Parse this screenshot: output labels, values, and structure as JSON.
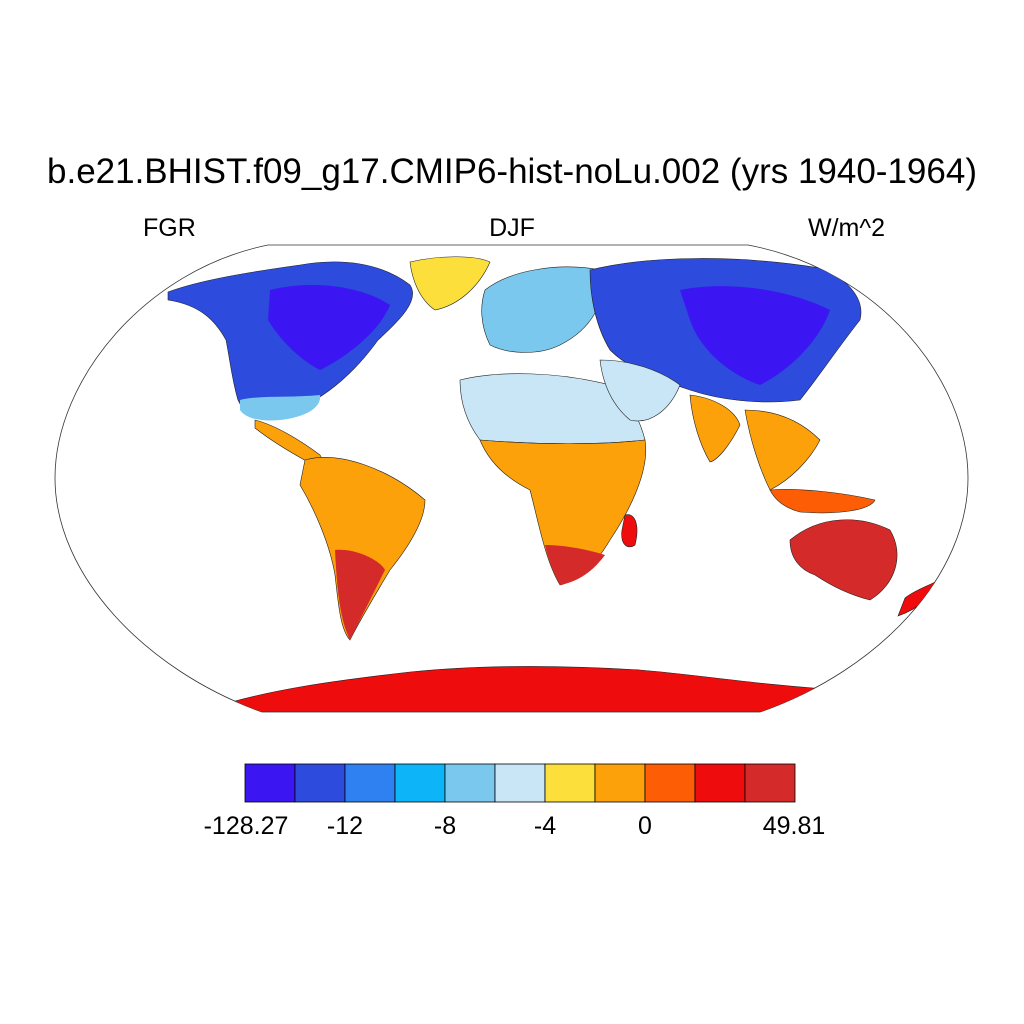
{
  "title": "b.e21.BHIST.f09_g17.CMIP6-hist-noLu.002 (yrs 1940-1964)",
  "left_label": "FGR",
  "center_label": "DJF",
  "right_label": "W/m^2",
  "colorbar": {
    "colors": [
      "#3b16f2",
      "#2d4bdc",
      "#2f80f0",
      "#0db4f8",
      "#7ac8ee",
      "#c9e6f7",
      "#fcdf3a",
      "#fda10a",
      "#fd5e05",
      "#ef0c0c",
      "#d42a2a"
    ],
    "labels": [
      "-128.27",
      "-12",
      "-8",
      "-4",
      "0",
      "49.81"
    ]
  },
  "land_color": "#ef0c0c"
}
